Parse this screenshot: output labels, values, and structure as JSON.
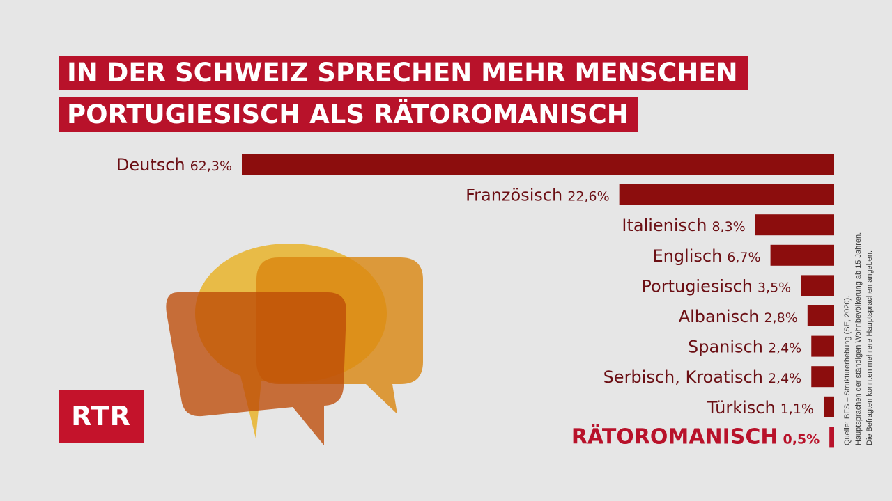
{
  "title": {
    "line1": "IN DER SCHWEIZ SPRECHEN MEHR MENSCHEN",
    "line2": "PORTUGIESISCH ALS RÄTOROMANISCH"
  },
  "logo": {
    "text": "RTR"
  },
  "source": {
    "line1": "Quelle: BFS – Strukturerhebung (SE, 2020).",
    "line2": "Hauptsprachen der ständigen Wohnbevölkerung ab 15 Jahren.",
    "line3": "Die Befragten konnten mehrere Hauptsprachen angeben."
  },
  "colors": {
    "bar": "#8c0d0d",
    "title_bg": "#b8122a",
    "label": "#6b0f14",
    "highlight_label": "#b8122a",
    "background": "#e6e6e6"
  },
  "chart_data": {
    "type": "bar",
    "orientation": "horizontal",
    "categories": [
      "Deutsch",
      "Französisch",
      "Italienisch",
      "Englisch",
      "Portugiesisch",
      "Albanisch",
      "Spanisch",
      "Serbisch, Kroatisch",
      "Türkisch",
      "RÄTOROMANISCH"
    ],
    "values": [
      62.3,
      22.6,
      8.3,
      6.7,
      3.5,
      2.8,
      2.4,
      2.4,
      1.1,
      0.5
    ],
    "value_labels": [
      "62,3%",
      "22,6%",
      "8,3%",
      "6,7%",
      "3,5%",
      "2,8%",
      "2,4%",
      "2,4%",
      "1,1%",
      "0,5%"
    ],
    "highlight": "RÄTOROMANISCH",
    "grid": false,
    "legend": "none"
  }
}
